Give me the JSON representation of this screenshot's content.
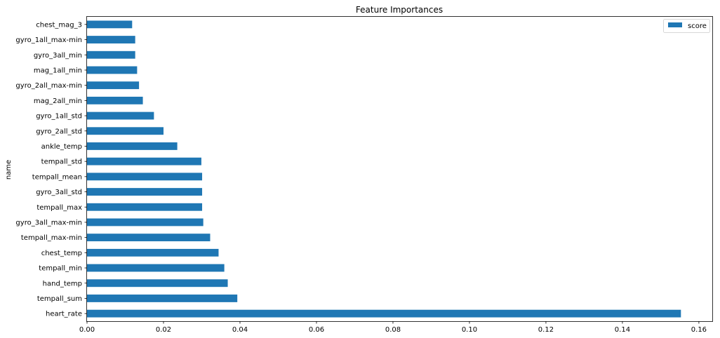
{
  "chart_data": {
    "type": "bar",
    "orientation": "horizontal",
    "title": "Feature Importances",
    "xlabel": "",
    "ylabel": "name",
    "xlim": [
      0,
      0.1635
    ],
    "xticks": [
      0.0,
      0.02,
      0.04,
      0.06,
      0.08,
      0.1,
      0.12,
      0.14,
      0.16
    ],
    "xtick_labels": [
      "0.00",
      "0.02",
      "0.04",
      "0.06",
      "0.08",
      "0.10",
      "0.12",
      "0.14",
      "0.16"
    ],
    "grid": false,
    "legend_position": "top-right",
    "categories": [
      "heart_rate",
      "tempall_sum",
      "hand_temp",
      "tempall_min",
      "chest_temp",
      "tempall_max-min",
      "gyro_3all_max-min",
      "tempall_max",
      "gyro_3all_std",
      "tempall_mean",
      "tempall_std",
      "ankle_temp",
      "gyro_2all_std",
      "gyro_1all_std",
      "mag_2all_min",
      "gyro_2all_max-min",
      "mag_1all_min",
      "gyro_3all_min",
      "gyro_1all_max-min",
      "chest_mag_3"
    ],
    "series": [
      {
        "name": "score",
        "color": "#1f77b4",
        "values": [
          0.1553,
          0.0393,
          0.0368,
          0.0359,
          0.0344,
          0.0322,
          0.0304,
          0.0301,
          0.0301,
          0.0301,
          0.0299,
          0.0236,
          0.02,
          0.0175,
          0.0146,
          0.0136,
          0.0131,
          0.0126,
          0.0126,
          0.0118
        ]
      }
    ]
  }
}
